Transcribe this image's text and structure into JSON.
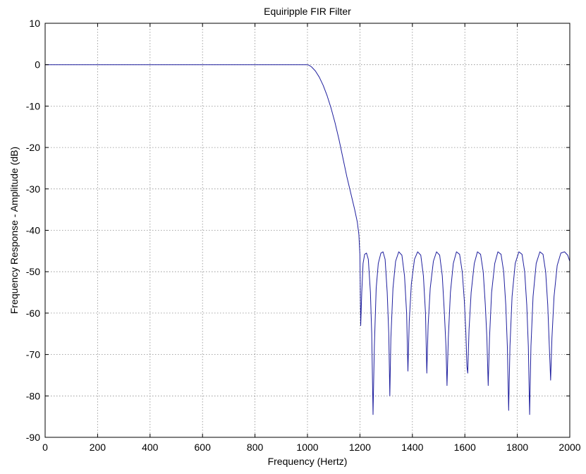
{
  "chart_data": {
    "type": "line",
    "title": "Equiripple FIR Filter",
    "xlabel": "Frequency (Hertz)",
    "ylabel": "Frequency Response - Amplitude (dB)",
    "xlim": [
      0,
      2000
    ],
    "ylim": [
      -90,
      10
    ],
    "xticks": [
      0,
      200,
      400,
      600,
      800,
      1000,
      1200,
      1400,
      1600,
      1800,
      2000
    ],
    "yticks": [
      10,
      0,
      -10,
      -20,
      -30,
      -40,
      -50,
      -60,
      -70,
      -80,
      -90
    ],
    "grid": true,
    "line_color": "#1f1f9e",
    "series": [
      {
        "points": [
          [
            0,
            0
          ],
          [
            1000,
            0
          ],
          [
            1005,
            -0.1
          ],
          [
            1015,
            -0.5
          ],
          [
            1030,
            -1.5
          ],
          [
            1045,
            -3
          ],
          [
            1060,
            -5
          ],
          [
            1075,
            -7.5
          ],
          [
            1090,
            -10.5
          ],
          [
            1105,
            -14
          ],
          [
            1120,
            -18
          ],
          [
            1135,
            -22.5
          ],
          [
            1150,
            -27
          ],
          [
            1165,
            -31
          ],
          [
            1180,
            -35
          ],
          [
            1190,
            -38
          ],
          [
            1196,
            -41
          ],
          [
            1200,
            -46
          ],
          [
            1203,
            -63
          ],
          [
            1207,
            -55
          ],
          [
            1212,
            -48
          ],
          [
            1218,
            -45.8
          ],
          [
            1225,
            -45.5
          ],
          [
            1232,
            -47
          ],
          [
            1240,
            -55
          ],
          [
            1245,
            -65
          ],
          [
            1250,
            -84.5
          ],
          [
            1255,
            -68
          ],
          [
            1262,
            -54
          ],
          [
            1270,
            -48
          ],
          [
            1280,
            -45.5
          ],
          [
            1288,
            -45.2
          ],
          [
            1296,
            -47
          ],
          [
            1304,
            -55
          ],
          [
            1310,
            -65
          ],
          [
            1314,
            -80
          ],
          [
            1318,
            -66
          ],
          [
            1326,
            -54
          ],
          [
            1336,
            -47.5
          ],
          [
            1348,
            -45.2
          ],
          [
            1360,
            -46
          ],
          [
            1370,
            -51
          ],
          [
            1378,
            -60
          ],
          [
            1383,
            -74
          ],
          [
            1388,
            -62
          ],
          [
            1396,
            -53
          ],
          [
            1408,
            -47
          ],
          [
            1420,
            -45.2
          ],
          [
            1432,
            -46
          ],
          [
            1442,
            -51
          ],
          [
            1450,
            -60
          ],
          [
            1455,
            -74.5
          ],
          [
            1460,
            -63
          ],
          [
            1468,
            -54
          ],
          [
            1480,
            -47.5
          ],
          [
            1492,
            -45.2
          ],
          [
            1504,
            -46
          ],
          [
            1514,
            -51
          ],
          [
            1522,
            -60
          ],
          [
            1528,
            -68
          ],
          [
            1532,
            -77.5
          ],
          [
            1537,
            -66
          ],
          [
            1545,
            -55
          ],
          [
            1556,
            -48
          ],
          [
            1568,
            -45.2
          ],
          [
            1580,
            -45.8
          ],
          [
            1590,
            -50
          ],
          [
            1598,
            -57
          ],
          [
            1604,
            -65
          ],
          [
            1608,
            -73
          ],
          [
            1611,
            -74.5
          ],
          [
            1616,
            -64
          ],
          [
            1624,
            -55
          ],
          [
            1636,
            -48
          ],
          [
            1648,
            -45.2
          ],
          [
            1660,
            -45.8
          ],
          [
            1670,
            -50
          ],
          [
            1678,
            -58
          ],
          [
            1684,
            -66
          ],
          [
            1689,
            -77.5
          ],
          [
            1694,
            -66
          ],
          [
            1702,
            -55
          ],
          [
            1714,
            -48
          ],
          [
            1726,
            -45.2
          ],
          [
            1738,
            -45.8
          ],
          [
            1748,
            -50
          ],
          [
            1756,
            -58
          ],
          [
            1762,
            -68
          ],
          [
            1767,
            -83.5
          ],
          [
            1772,
            -68
          ],
          [
            1780,
            -56
          ],
          [
            1792,
            -48
          ],
          [
            1806,
            -45.2
          ],
          [
            1818,
            -45.8
          ],
          [
            1828,
            -50
          ],
          [
            1836,
            -58
          ],
          [
            1842,
            -68
          ],
          [
            1847,
            -84.5
          ],
          [
            1852,
            -68
          ],
          [
            1860,
            -56
          ],
          [
            1872,
            -48
          ],
          [
            1886,
            -45.2
          ],
          [
            1898,
            -45.8
          ],
          [
            1908,
            -50
          ],
          [
            1916,
            -58
          ],
          [
            1922,
            -68
          ],
          [
            1927,
            -76.2
          ],
          [
            1932,
            -66
          ],
          [
            1940,
            -56
          ],
          [
            1952,
            -48.5
          ],
          [
            1966,
            -45.5
          ],
          [
            1980,
            -45.2
          ],
          [
            1992,
            -46
          ],
          [
            2000,
            -47.5
          ]
        ]
      }
    ]
  }
}
